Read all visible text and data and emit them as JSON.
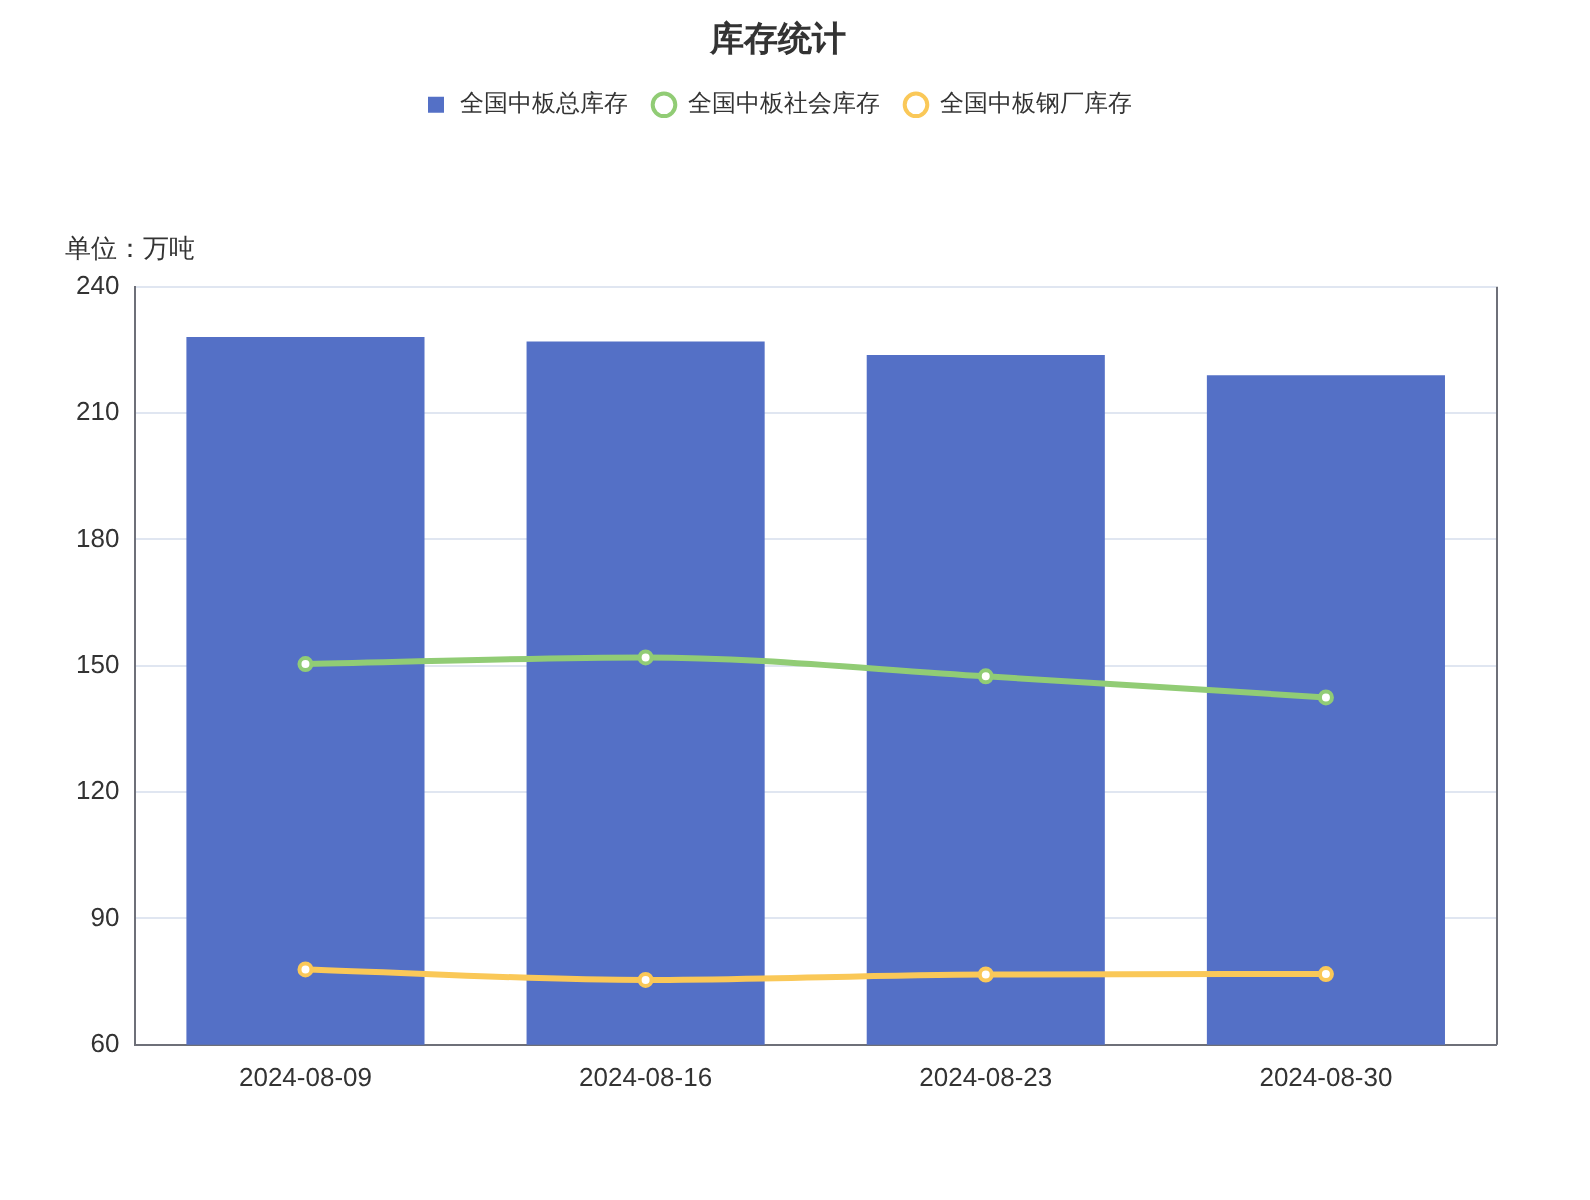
{
  "chart_data": {
    "type": "bar",
    "title": "库存统计",
    "ylabel": "单位：万吨",
    "categories": [
      "2024-08-09",
      "2024-08-16",
      "2024-08-23",
      "2024-08-30"
    ],
    "series": [
      {
        "name": "全国中板总库存",
        "color": "#5470c6",
        "values": [
          228.1,
          227.0,
          223.8,
          219.0
        ]
      },
      {
        "name": "全国中板社会库存",
        "type": "line",
        "color": "#91cc75",
        "values": [
          150.4,
          152.0,
          147.5,
          142.5
        ]
      },
      {
        "name": "全国中板钢厂库存",
        "type": "line",
        "color": "#fac858",
        "values": [
          77.9,
          75.4,
          76.7,
          76.8
        ]
      }
    ],
    "ylim": [
      60,
      240
    ],
    "yticks": [
      60,
      90,
      120,
      150,
      180,
      210,
      240
    ],
    "grid": "y",
    "legend": "top",
    "marker": "circle",
    "line_style": "solid"
  }
}
